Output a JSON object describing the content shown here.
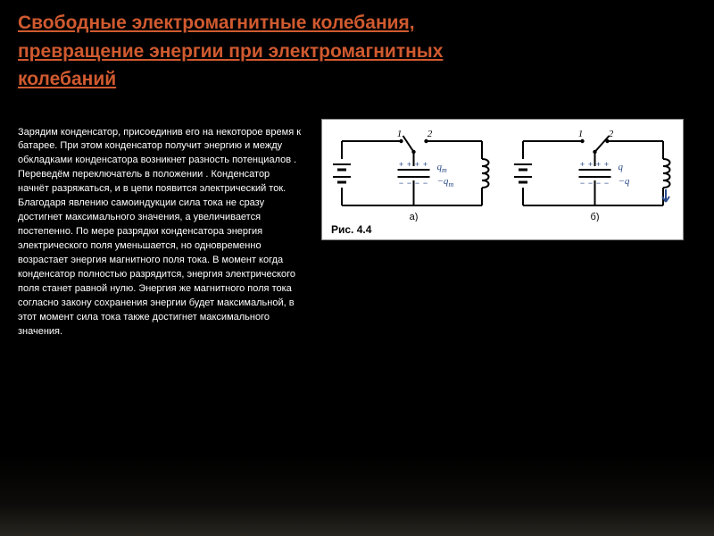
{
  "title": "Свободные электромагнитные колебания, превращение энергии при электромагнитных колебаний",
  "body": "Зарядим конденсатор, присоединив его на некоторое время к батарее. При этом конденсатор получит энергию и между обкладками конденсатора возникнет разность потенциалов . Переведём переключатель  в положении . Конденсатор начнёт разряжаться, и в цепи появится электрический ток. Благодаря явлению самоиндукции сила тока не сразу достигнет максимального значения, а увеличивается постепенно. По мере разрядки конденсатора энергия электрического поля уменьшается, но одновременно возрастает энергия магнитного поля тока. В момент когда конденсатор полностью разрядится, энергия электрического поля станет равной нулю. Энергия же магнитного поля тока согласно закону сохранения энергии будет максимальной, в этот момент сила тока также достигнет максимального значения.",
  "figure": {
    "caption": "Рис. 4.4",
    "diagrams": [
      {
        "switch_labels": [
          "1",
          "2"
        ],
        "charge_top": "q",
        "charge_bot": "−q",
        "charge_sub_top": "m",
        "charge_sub_bot": "m",
        "label_below": "а)",
        "show_arrow": false,
        "switch_pos": "open_left",
        "colors": {
          "stroke": "#000000",
          "charge_text": "#2a4a8a",
          "bg": "#ffffff"
        }
      },
      {
        "switch_labels": [
          "1",
          "2"
        ],
        "charge_top": "q",
        "charge_bot": "−q",
        "charge_sub_top": "",
        "charge_sub_bot": "",
        "label_below": "б)",
        "show_arrow": true,
        "switch_pos": "open_right",
        "colors": {
          "stroke": "#000000",
          "charge_text": "#2a4a8a",
          "bg": "#ffffff"
        }
      }
    ]
  }
}
